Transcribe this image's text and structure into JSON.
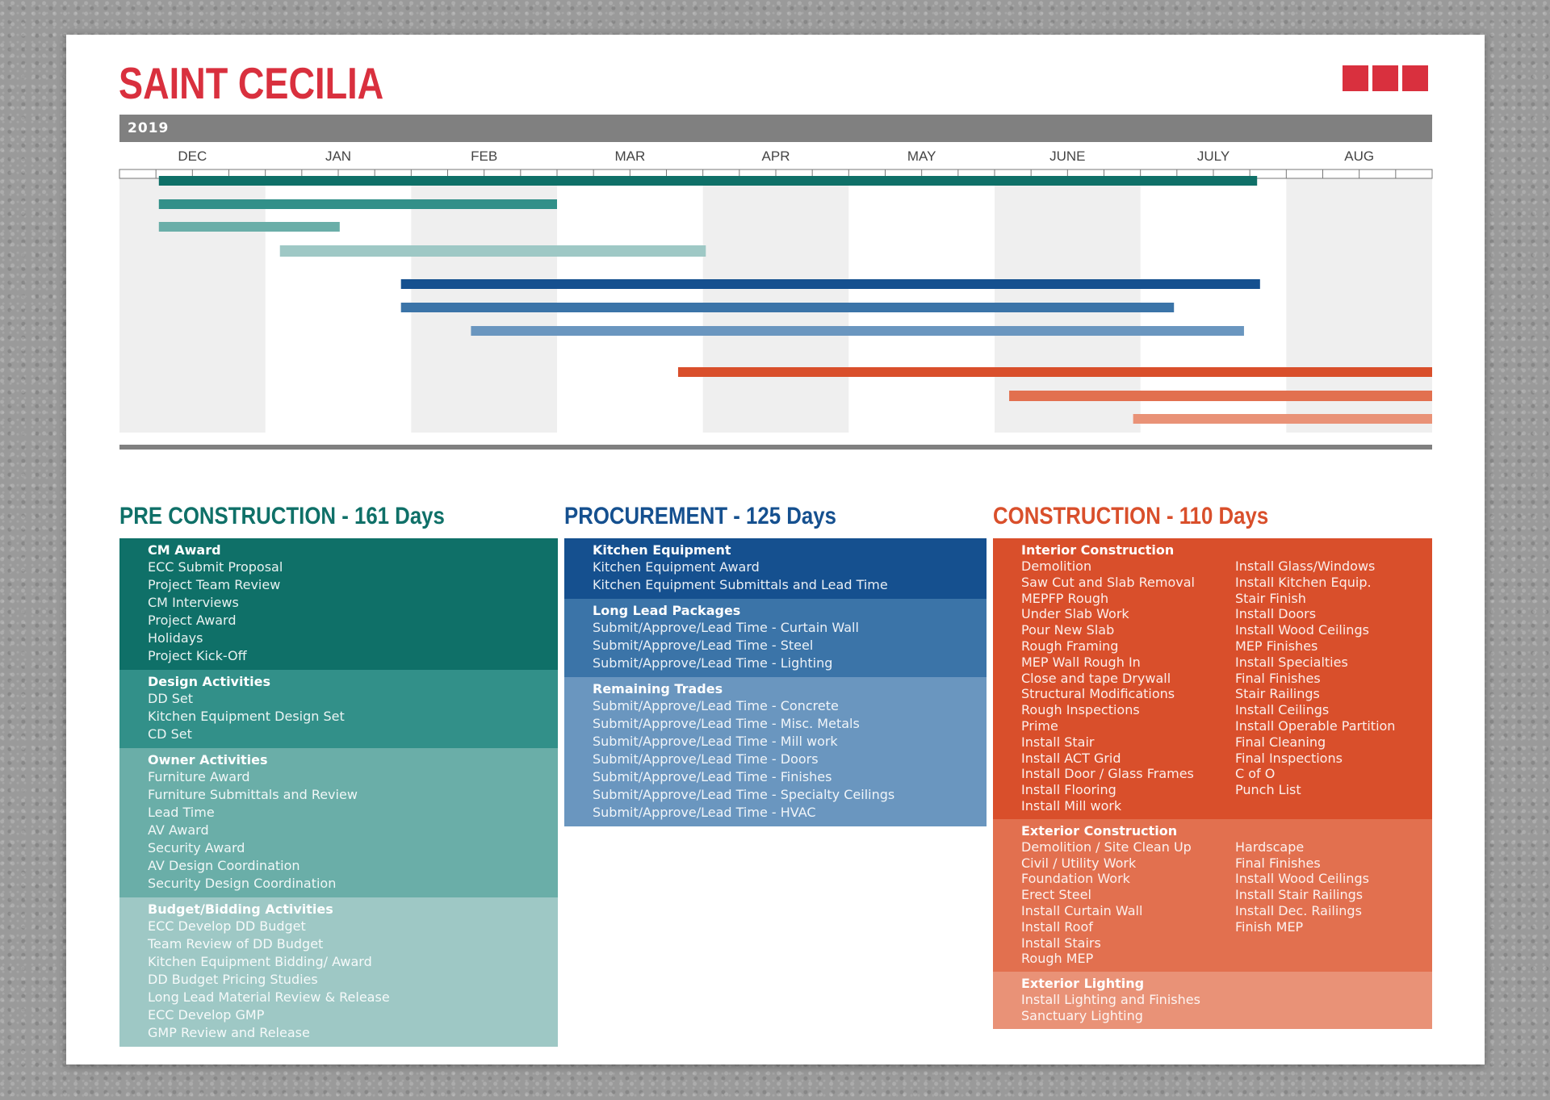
{
  "title": "SAINT CECILIA",
  "year": "2019",
  "colors": {
    "brand": "#d9303e",
    "pre": [
      "#0f7068",
      "#329089",
      "#6aaea8",
      "#9ec8c5"
    ],
    "proc": [
      "#15508f",
      "#3b74a8",
      "#6a96bf"
    ],
    "con": [
      "#d94f2b",
      "#e2704f",
      "#e99277"
    ]
  },
  "panels": {
    "pre": {
      "title": "PRE CONSTRUCTION - 161 Days",
      "groups": [
        {
          "head": "CM Award",
          "items": [
            "ECC Submit Proposal",
            "Project Team Review",
            "CM Interviews",
            "Project Award",
            "Holidays",
            "Project Kick-Off"
          ]
        },
        {
          "head": "Design Activities",
          "items": [
            "DD Set",
            "Kitchen Equipment Design Set",
            "CD Set"
          ]
        },
        {
          "head": "Owner Activities",
          "items": [
            "Furniture Award",
            "Furniture Submittals and Review",
            "Lead Time",
            "AV Award",
            "Security Award",
            "AV Design Coordination",
            "Security Design Coordination"
          ]
        },
        {
          "head": "Budget/Bidding Activities",
          "items": [
            "ECC Develop DD Budget",
            "Team Review of DD Budget",
            "Kitchen Equipment Bidding/ Award",
            "DD Budget Pricing Studies",
            "Long Lead Material Review & Release",
            "ECC Develop GMP",
            "GMP Review and Release"
          ]
        }
      ]
    },
    "proc": {
      "title": "PROCUREMENT - 125 Days",
      "groups": [
        {
          "head": "Kitchen Equipment",
          "items": [
            "Kitchen Equipment Award",
            "Kitchen Equipment Submittals and Lead Time"
          ]
        },
        {
          "head": "Long Lead Packages",
          "items": [
            "Submit/Approve/Lead Time - Curtain Wall",
            "Submit/Approve/Lead Time - Steel",
            "Submit/Approve/Lead Time - Lighting"
          ]
        },
        {
          "head": "Remaining Trades",
          "items": [
            "Submit/Approve/Lead Time - Concrete",
            "Submit/Approve/Lead Time - Misc. Metals",
            "Submit/Approve/Lead Time - Mill work",
            "Submit/Approve/Lead Time - Doors",
            "Submit/Approve/Lead Time - Finishes",
            "Submit/Approve/Lead Time - Specialty Ceilings",
            "Submit/Approve/Lead Time - HVAC"
          ]
        }
      ]
    },
    "con": {
      "title": "CONSTRUCTION - 110 Days",
      "groups": [
        {
          "head": "Interior Construction",
          "left": [
            "Demolition",
            "Saw Cut and Slab Removal",
            "MEPFP Rough",
            "Under Slab Work",
            "Pour New Slab",
            "Rough Framing",
            "MEP Wall Rough In",
            "Close and tape Drywall",
            "Structural Modifications",
            "Rough Inspections",
            "Prime",
            "Install Stair",
            "Install ACT Grid",
            "Install Door / Glass Frames",
            "Install Flooring",
            "Install Mill work"
          ],
          "right": [
            "Install Glass/Windows",
            "Install Kitchen Equip.",
            "Stair Finish",
            "Install Doors",
            "Install Wood Ceilings",
            "MEP Finishes",
            "Install Specialties",
            "Final Finishes",
            "Stair Railings",
            "Install Ceilings",
            "Install Operable Partition",
            "Final Cleaning",
            "Final Inspections",
            "C of O",
            "Punch List"
          ]
        },
        {
          "head": "Exterior Construction",
          "left": [
            "Demolition / Site Clean Up",
            "Civil / Utility Work",
            "Foundation Work",
            "Erect Steel",
            "Install Curtain Wall",
            "Install Roof",
            "Install Stairs",
            "Rough MEP"
          ],
          "right": [
            "Hardscape",
            "Final Finishes",
            "Install Wood Ceilings",
            "Install Stair Railings",
            "Install Dec. Railings",
            "Finish MEP"
          ]
        },
        {
          "head": "Exterior Lighting",
          "left": [
            "Install Lighting and Finishes",
            "Sanctuary Lighting"
          ],
          "right": []
        }
      ]
    }
  },
  "chart_data": {
    "type": "gantt",
    "title": "SAINT CECILIA",
    "year": "2019",
    "months": [
      "DEC",
      "JAN",
      "FEB",
      "MAR",
      "APR",
      "MAY",
      "JUNE",
      "JULY",
      "AUG"
    ],
    "weeks_per_month": 4,
    "x_unit": "month index (0 = start of DEC)",
    "series": [
      {
        "group": "pre",
        "bars": [
          {
            "start": 0.27,
            "end": 7.8,
            "color": "#0f7068"
          },
          {
            "start": 0.27,
            "end": 3.0,
            "color": "#329089"
          },
          {
            "start": 0.27,
            "end": 1.51,
            "color": "#6aaea8"
          },
          {
            "start": 1.1,
            "end": 4.02,
            "color": "#9ec8c5"
          }
        ]
      },
      {
        "group": "proc",
        "bars": [
          {
            "start": 1.93,
            "end": 7.82,
            "color": "#15508f"
          },
          {
            "start": 1.93,
            "end": 7.23,
            "color": "#3b74a8"
          },
          {
            "start": 2.41,
            "end": 7.71,
            "color": "#6a96bf"
          }
        ]
      },
      {
        "group": "con",
        "bars": [
          {
            "start": 3.83,
            "end": 9.0,
            "color": "#d94f2b"
          },
          {
            "start": 6.1,
            "end": 9.0,
            "color": "#e2704f"
          },
          {
            "start": 6.95,
            "end": 9.0,
            "color": "#e99277"
          }
        ]
      }
    ]
  }
}
